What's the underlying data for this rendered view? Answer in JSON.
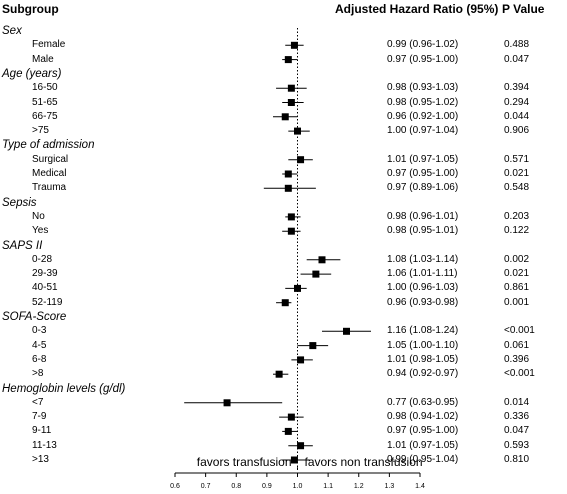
{
  "headers": {
    "subgroup": "Subgroup",
    "hr": "Adjusted Hazard Ratio (95%)",
    "p": "P Value"
  },
  "chart_data": {
    "type": "forest",
    "reference_line": 1.0,
    "xlim": [
      0.6,
      1.4
    ],
    "ticks": [
      "0.6",
      "0.7",
      "0.8",
      "0.9",
      "1.0",
      "1.1",
      "1.2",
      "1.3",
      "1.4"
    ],
    "annotations": {
      "left": "favors transfusion",
      "right": "favors non transfusion"
    },
    "rows": [
      {
        "kind": "group",
        "label": "Sex"
      },
      {
        "kind": "item",
        "label": "Female",
        "est": 0.99,
        "lo": 0.96,
        "hi": 1.02,
        "ci_text": "0.99 (0.96-1.02)",
        "p": "0.488"
      },
      {
        "kind": "item",
        "label": "Male",
        "est": 0.97,
        "lo": 0.95,
        "hi": 1.0,
        "ci_text": "0.97 (0.95-1.00)",
        "p": "0.047"
      },
      {
        "kind": "group",
        "label": "Age (years)"
      },
      {
        "kind": "item",
        "label": "16-50",
        "est": 0.98,
        "lo": 0.93,
        "hi": 1.03,
        "ci_text": "0.98 (0.93-1.03)",
        "p": "0.394"
      },
      {
        "kind": "item",
        "label": "51-65",
        "est": 0.98,
        "lo": 0.95,
        "hi": 1.02,
        "ci_text": "0.98 (0.95-1.02)",
        "p": "0.294"
      },
      {
        "kind": "item",
        "label": "66-75",
        "est": 0.96,
        "lo": 0.92,
        "hi": 1.0,
        "ci_text": "0.96 (0.92-1.00)",
        "p": "0.044"
      },
      {
        "kind": "item",
        "label": ">75",
        "est": 1.0,
        "lo": 0.97,
        "hi": 1.04,
        "ci_text": "1.00 (0.97-1.04)",
        "p": "0.906"
      },
      {
        "kind": "group",
        "label": "Type of admission"
      },
      {
        "kind": "item",
        "label": "Surgical",
        "est": 1.01,
        "lo": 0.97,
        "hi": 1.05,
        "ci_text": "1.01 (0.97-1.05)",
        "p": "0.571"
      },
      {
        "kind": "item",
        "label": "Medical",
        "est": 0.97,
        "lo": 0.95,
        "hi": 1.0,
        "ci_text": "0.97 (0.95-1.00)",
        "p": "0.021"
      },
      {
        "kind": "item",
        "label": "Trauma",
        "est": 0.97,
        "lo": 0.89,
        "hi": 1.06,
        "ci_text": "0.97 (0.89-1.06)",
        "p": "0.548"
      },
      {
        "kind": "group",
        "label": "Sepsis"
      },
      {
        "kind": "item",
        "label": "No",
        "est": 0.98,
        "lo": 0.96,
        "hi": 1.01,
        "ci_text": "0.98 (0.96-1.01)",
        "p": "0.203"
      },
      {
        "kind": "item",
        "label": "Yes",
        "est": 0.98,
        "lo": 0.95,
        "hi": 1.01,
        "ci_text": "0.98 (0.95-1.01)",
        "p": "0.122"
      },
      {
        "kind": "group",
        "label": "SAPS II"
      },
      {
        "kind": "item",
        "label": "0-28",
        "est": 1.08,
        "lo": 1.03,
        "hi": 1.14,
        "ci_text": "1.08 (1.03-1.14)",
        "p": "0.002"
      },
      {
        "kind": "item",
        "label": "29-39",
        "est": 1.06,
        "lo": 1.01,
        "hi": 1.11,
        "ci_text": "1.06 (1.01-1.11)",
        "p": "0.021"
      },
      {
        "kind": "item",
        "label": "40-51",
        "est": 1.0,
        "lo": 0.96,
        "hi": 1.03,
        "ci_text": "1.00 (0.96-1.03)",
        "p": "0.861"
      },
      {
        "kind": "item",
        "label": "52-119",
        "est": 0.96,
        "lo": 0.93,
        "hi": 0.98,
        "ci_text": "0.96 (0.93-0.98)",
        "p": "0.001"
      },
      {
        "kind": "group",
        "label": "SOFA-Score"
      },
      {
        "kind": "item",
        "label": "0-3",
        "est": 1.16,
        "lo": 1.08,
        "hi": 1.24,
        "ci_text": "1.16 (1.08-1.24)",
        "p": "<0.001"
      },
      {
        "kind": "item",
        "label": "4-5",
        "est": 1.05,
        "lo": 1.0,
        "hi": 1.1,
        "ci_text": "1.05 (1.00-1.10)",
        "p": "0.061"
      },
      {
        "kind": "item",
        "label": "6-8",
        "est": 1.01,
        "lo": 0.98,
        "hi": 1.05,
        "ci_text": "1.01 (0.98-1.05)",
        "p": "0.396"
      },
      {
        "kind": "item",
        "label": ">8",
        "est": 0.94,
        "lo": 0.92,
        "hi": 0.97,
        "ci_text": "0.94 (0.92-0.97)",
        "p": "<0.001"
      },
      {
        "kind": "group",
        "label": "Hemoglobin levels (g/dl)"
      },
      {
        "kind": "item",
        "label": "<7",
        "est": 0.77,
        "lo": 0.63,
        "hi": 0.95,
        "ci_text": "0.77 (0.63-0.95)",
        "p": "0.014"
      },
      {
        "kind": "item",
        "label": "7-9",
        "est": 0.98,
        "lo": 0.94,
        "hi": 1.02,
        "ci_text": "0.98 (0.94-1.02)",
        "p": "0.336"
      },
      {
        "kind": "item",
        "label": "9-11",
        "est": 0.97,
        "lo": 0.95,
        "hi": 1.0,
        "ci_text": "0.97 (0.95-1.00)",
        "p": "0.047"
      },
      {
        "kind": "item",
        "label": "11-13",
        "est": 1.01,
        "lo": 0.97,
        "hi": 1.05,
        "ci_text": "1.01 (0.97-1.05)",
        "p": "0.593"
      },
      {
        "kind": "item",
        "label": ">13",
        "est": 0.99,
        "lo": 0.95,
        "hi": 1.04,
        "ci_text": "0.99 (0.95-1.04)",
        "p": "0.810"
      }
    ]
  }
}
